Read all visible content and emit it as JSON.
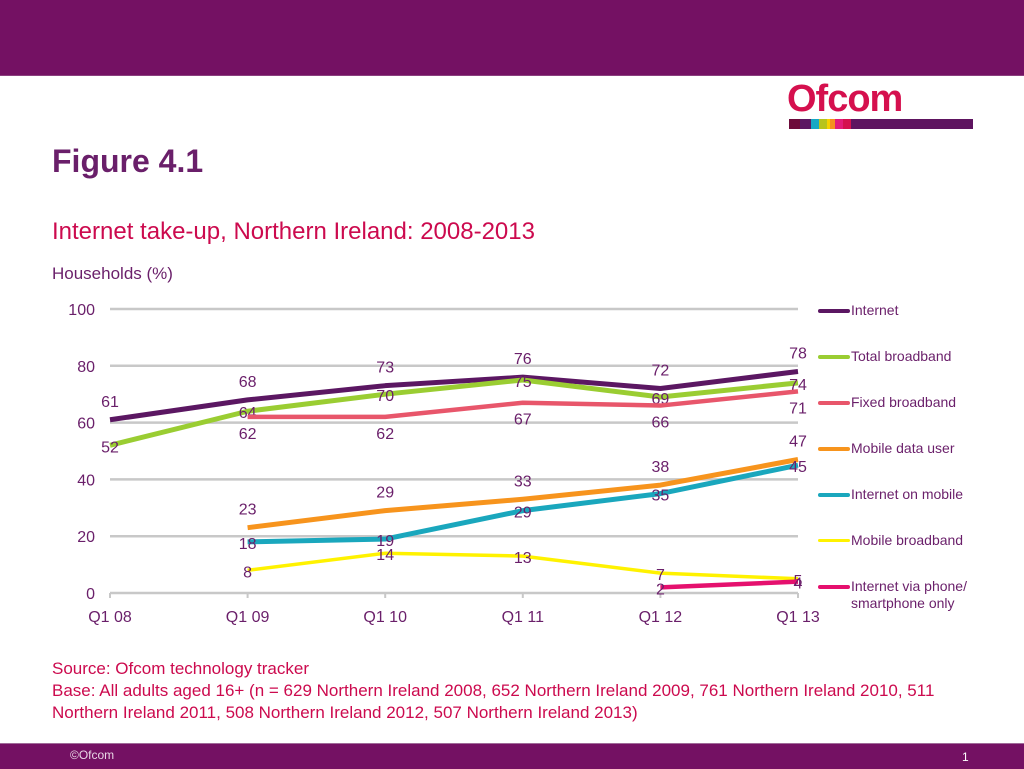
{
  "header": {
    "figure_label": "Figure 4.1",
    "subtitle": "Internet take-up, Northern Ireland: 2008-2013",
    "y_axis_title": "Households (%)"
  },
  "logo": {
    "text": "Ofcom",
    "colors": [
      "#6d0b3a",
      "#5b1762",
      "#17a8c4",
      "#b7c41d",
      "#f6d100",
      "#f5901e",
      "#e21b79",
      "#d5104e",
      "#5e1460"
    ]
  },
  "chart_data": {
    "type": "line",
    "title": "Internet take-up, Northern Ireland: 2008-2013",
    "xlabel": "",
    "ylabel": "Households (%)",
    "ylim": [
      0,
      100
    ],
    "yticks": [
      0,
      20,
      40,
      60,
      80,
      100
    ],
    "ytick_labels": [
      "0",
      "20",
      "40",
      "60",
      "80",
      "100"
    ],
    "grid": true,
    "legend_position": "right",
    "categories": [
      "Q1 08",
      "Q1 09",
      "Q1 10",
      "Q1 11",
      "Q1 12",
      "Q1 13"
    ],
    "series": [
      {
        "name": "Internet",
        "color": "#5b1762",
        "values": [
          61,
          68,
          73,
          76,
          72,
          78
        ],
        "label_pos": "above"
      },
      {
        "name": "Total broadband",
        "color": "#9acd32",
        "values": [
          52,
          64,
          70,
          75,
          69,
          74
        ],
        "label_pos": "on"
      },
      {
        "name": "Fixed broadband",
        "color": "#e8566b",
        "values": [
          null,
          62,
          62,
          67,
          66,
          71
        ],
        "label_pos": "below"
      },
      {
        "name": "Mobile data user",
        "color": "#f7941d",
        "values": [
          null,
          23,
          29,
          33,
          38,
          47
        ],
        "label_pos": "above"
      },
      {
        "name": "Internet on mobile",
        "color": "#1aa7bd",
        "values": [
          null,
          18,
          19,
          29,
          35,
          45
        ],
        "label_pos": "on"
      },
      {
        "name": "Mobile broadband",
        "color": "#fff200",
        "values": [
          null,
          8,
          14,
          13,
          7,
          5
        ],
        "label_pos": "on"
      },
      {
        "name": "Internet via phone/ smartphone only",
        "color": "#e5106e",
        "values": [
          null,
          null,
          null,
          null,
          2,
          4
        ],
        "label_pos": "on"
      }
    ],
    "legend_labels": [
      "Internet",
      "Total broadband",
      "Fixed broadband",
      "Mobile data user",
      "Internet on mobile",
      "Mobile broadband",
      "Internet via phone/ smartphone only"
    ]
  },
  "footer": {
    "source": "Source: Ofcom technology tracker",
    "base": "Base: All adults aged 16+ (n = 629 Northern Ireland 2008, 652 Northern Ireland 2009, 761 Northern Ireland 2010, 511 Northern Ireland 2011, 508 Northern Ireland 2012, 507 Northern Ireland 2013)",
    "copyright": "©Ofcom",
    "page_number": "1"
  }
}
